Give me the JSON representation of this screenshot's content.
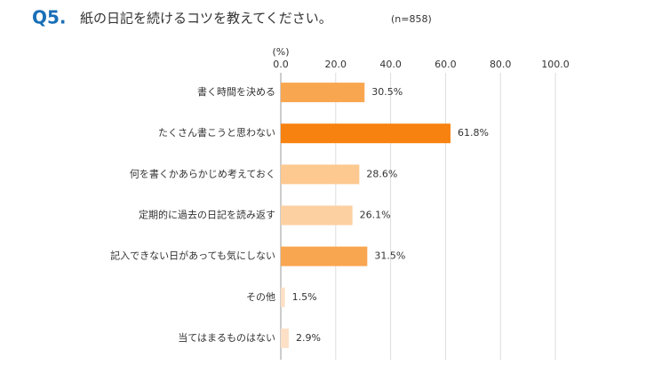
{
  "chart_data": {
    "type": "barh",
    "title_prefix": "Q5.",
    "title": "紙の日記を続けるコツを教えてください。",
    "subtitle": "(n=858)",
    "x_axis_label": "(%)",
    "categories": [
      "書く時間を決める",
      "たくさん書こうと思わない",
      "何を書くかあらかじめ考えておく",
      "定期的に過去の日記を読み返す",
      "記入できない日があっても気にしない",
      "その他",
      "当てはまるものはない"
    ],
    "values": [
      30.5,
      61.8,
      28.6,
      26.1,
      31.5,
      1.5,
      2.9
    ],
    "value_labels": [
      "30.5%",
      "61.8%",
      "28.6%",
      "26.1%",
      "31.5%",
      "1.5%",
      "2.9%"
    ],
    "colors": [
      "#f9a650",
      "#f7820f",
      "#fdc990",
      "#fdd0a2",
      "#f9a650",
      "#fde0c6",
      "#fde0c6"
    ],
    "xlim": [
      0,
      100
    ],
    "xticks": [
      {
        "value": 0,
        "label": "0.0"
      },
      {
        "value": 20,
        "label": "20.0"
      },
      {
        "value": 40,
        "label": "40.0"
      },
      {
        "value": 60,
        "label": "60.0"
      },
      {
        "value": 80,
        "label": "80.0"
      },
      {
        "value": 100,
        "label": "100.0"
      }
    ],
    "grid": true
  }
}
